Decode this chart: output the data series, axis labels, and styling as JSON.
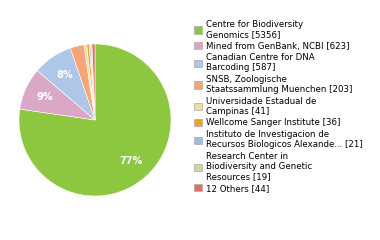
{
  "labels": [
    "Centre for Biodiversity\nGenomics [5356]",
    "Mined from GenBank, NCBI [623]",
    "Canadian Centre for DNA\nBarcoding [587]",
    "SNSB, Zoologische\nStaatssammlung Muenchen [203]",
    "Universidade Estadual de\nCampinas [41]",
    "Wellcome Sanger Institute [36]",
    "Instituto de Investigacion de\nRecursos Biologicos Alexande... [21]",
    "Research Center in\nBiodiversity and Genetic\nResources [19]",
    "12 Others [44]"
  ],
  "values": [
    5356,
    623,
    587,
    203,
    41,
    36,
    21,
    19,
    44
  ],
  "colors": [
    "#8dc63f",
    "#dba7c7",
    "#aec6e8",
    "#f4a67a",
    "#e8e0a0",
    "#f4a020",
    "#a0bcdc",
    "#c8d8a0",
    "#e07060"
  ],
  "autopct_threshold": 5.0,
  "startangle": 90,
  "figsize": [
    3.8,
    2.4
  ],
  "dpi": 100,
  "legend_fontsize": 6.2,
  "pct_fontsize": 7,
  "pct_color": "white"
}
